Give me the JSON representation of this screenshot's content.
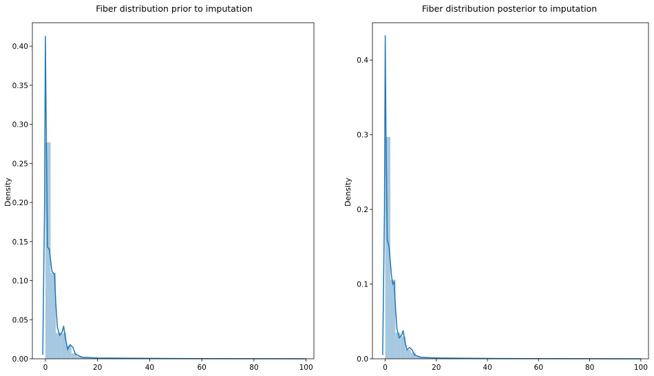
{
  "chart_data": [
    {
      "type": "histogram",
      "title": "Fiber distribution prior to imputation",
      "xlabel": "",
      "ylabel": "Density",
      "xlim": [
        -5,
        103
      ],
      "ylim": [
        0,
        0.43
      ],
      "grid": false,
      "x_ticks": [
        0,
        20,
        40,
        60,
        80,
        100
      ],
      "y_ticks": [
        0.0,
        0.05,
        0.1,
        0.15,
        0.2,
        0.25,
        0.3,
        0.35,
        0.4
      ],
      "y_tick_labels": [
        "0.00",
        "0.05",
        "0.10",
        "0.15",
        "0.20",
        "0.25",
        "0.30",
        "0.35",
        "0.40"
      ],
      "bin_width": 2,
      "bins": [
        {
          "x0": 0,
          "x1": 2,
          "density": 0.277
        },
        {
          "x0": 2,
          "x1": 4,
          "density": 0.11
        },
        {
          "x0": 4,
          "x1": 6,
          "density": 0.033
        },
        {
          "x0": 6,
          "x1": 8,
          "density": 0.033
        },
        {
          "x0": 8,
          "x1": 10,
          "density": 0.017
        },
        {
          "x0": 10,
          "x1": 12,
          "density": 0.007
        },
        {
          "x0": 12,
          "x1": 14,
          "density": 0.003
        },
        {
          "x0": 14,
          "x1": 16,
          "density": 0.002
        },
        {
          "x0": 16,
          "x1": 18,
          "density": 0.0015
        },
        {
          "x0": 18,
          "x1": 20,
          "density": 0.001
        },
        {
          "x0": 20,
          "x1": 30,
          "density": 0.0007
        },
        {
          "x0": 30,
          "x1": 100,
          "density": 0.0002
        }
      ],
      "kde": [
        [
          -1,
          0.005
        ],
        [
          -0.3,
          0.2
        ],
        [
          0,
          0.413
        ],
        [
          0.3,
          0.3
        ],
        [
          0.8,
          0.143
        ],
        [
          1.5,
          0.14
        ],
        [
          2.5,
          0.112
        ],
        [
          3.5,
          0.108
        ],
        [
          4,
          0.07
        ],
        [
          4.6,
          0.04
        ],
        [
          5.5,
          0.03
        ],
        [
          6.5,
          0.035
        ],
        [
          7,
          0.042
        ],
        [
          7.6,
          0.028
        ],
        [
          8.5,
          0.012
        ],
        [
          9.5,
          0.018
        ],
        [
          10.5,
          0.015
        ],
        [
          11.5,
          0.006
        ],
        [
          14,
          0.002
        ],
        [
          20,
          0.001
        ],
        [
          40,
          0.0005
        ],
        [
          60,
          0.0002
        ],
        [
          80,
          0.0001
        ],
        [
          100,
          0.0
        ]
      ],
      "color": "#1f77b4",
      "bar_color": "#a6c8e0"
    },
    {
      "type": "histogram",
      "title": "Fiber distribution posterior to imputation",
      "xlabel": "",
      "ylabel": "Density",
      "xlim": [
        -5,
        103
      ],
      "ylim": [
        0,
        0.45
      ],
      "grid": false,
      "x_ticks": [
        0,
        20,
        40,
        60,
        80,
        100
      ],
      "y_ticks": [
        0.0,
        0.1,
        0.2,
        0.3,
        0.4
      ],
      "y_tick_labels": [
        "0.0",
        "0.1",
        "0.2",
        "0.3",
        "0.4"
      ],
      "bin_width": 2,
      "bins": [
        {
          "x0": 0,
          "x1": 2,
          "density": 0.297
        },
        {
          "x0": 2,
          "x1": 4,
          "density": 0.106
        },
        {
          "x0": 4,
          "x1": 6,
          "density": 0.035
        },
        {
          "x0": 6,
          "x1": 8,
          "density": 0.03
        },
        {
          "x0": 8,
          "x1": 10,
          "density": 0.012
        },
        {
          "x0": 10,
          "x1": 12,
          "density": 0.008
        },
        {
          "x0": 12,
          "x1": 14,
          "density": 0.003
        },
        {
          "x0": 14,
          "x1": 16,
          "density": 0.002
        },
        {
          "x0": 16,
          "x1": 18,
          "density": 0.0015
        },
        {
          "x0": 18,
          "x1": 20,
          "density": 0.001
        },
        {
          "x0": 20,
          "x1": 30,
          "density": 0.0007
        },
        {
          "x0": 30,
          "x1": 100,
          "density": 0.0002
        }
      ],
      "kde": [
        [
          -1,
          0.005
        ],
        [
          -0.3,
          0.2
        ],
        [
          0,
          0.433
        ],
        [
          0.3,
          0.3
        ],
        [
          0.8,
          0.16
        ],
        [
          1.5,
          0.15
        ],
        [
          2.5,
          0.11
        ],
        [
          3,
          0.1
        ],
        [
          3.5,
          0.103
        ],
        [
          4,
          0.07
        ],
        [
          4.6,
          0.04
        ],
        [
          5.5,
          0.028
        ],
        [
          6.5,
          0.032
        ],
        [
          7,
          0.038
        ],
        [
          7.6,
          0.025
        ],
        [
          8.5,
          0.012
        ],
        [
          9.5,
          0.015
        ],
        [
          10.5,
          0.012
        ],
        [
          11.5,
          0.005
        ],
        [
          14,
          0.002
        ],
        [
          20,
          0.001
        ],
        [
          40,
          0.0005
        ],
        [
          60,
          0.0002
        ],
        [
          80,
          0.0001
        ],
        [
          100,
          0.0
        ]
      ],
      "color": "#1f77b4",
      "bar_color": "#a6c8e0"
    }
  ]
}
